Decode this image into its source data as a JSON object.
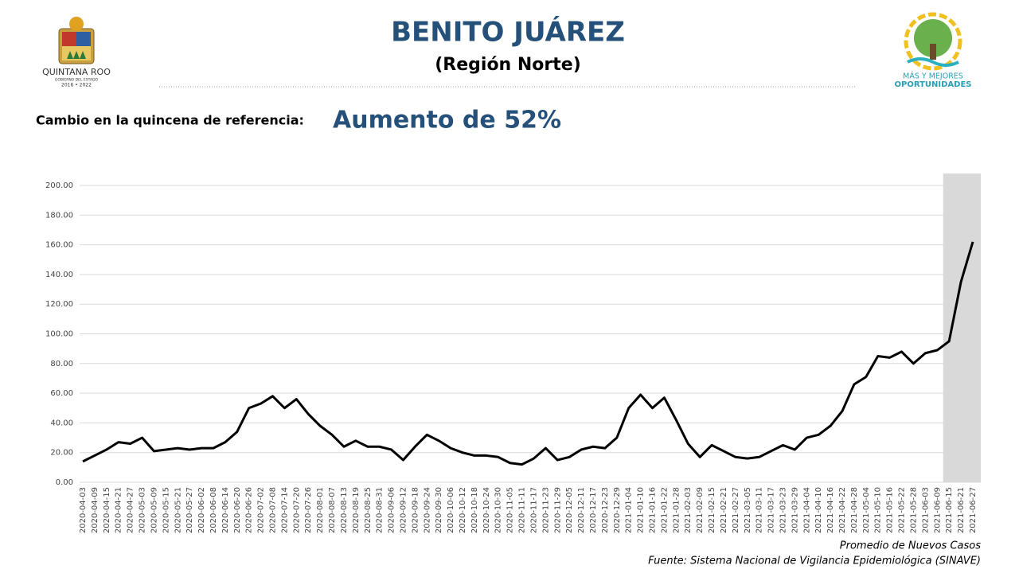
{
  "header": {
    "title": "BENITO JUÁREZ",
    "subtitle": "(Región Norte)"
  },
  "left_logo": {
    "name": "QUINTANA ROO",
    "tagline": "GOBIERNO DEL ESTADO",
    "years": "2016 • 2022"
  },
  "right_logo": {
    "line1": "MÁS Y MEJORES",
    "line2": "OPORTUNIDADES"
  },
  "change": {
    "label": "Cambio en la quincena de referencia:",
    "value": "Aumento de 52%"
  },
  "footer": {
    "series_note": "Promedio de Nuevos Casos",
    "source": "Fuente: Sistema Nacional de Vigilancia Epidemiológica (SINAVE)"
  },
  "chart_data": {
    "type": "line",
    "color": "#000000",
    "grid": true,
    "highlight_from": "2021-06-15",
    "categories": [
      "2020-04-03",
      "2020-04-09",
      "2020-04-15",
      "2020-04-21",
      "2020-04-27",
      "2020-05-03",
      "2020-05-09",
      "2020-05-15",
      "2020-05-21",
      "2020-05-27",
      "2020-06-02",
      "2020-06-08",
      "2020-06-14",
      "2020-06-20",
      "2020-06-26",
      "2020-07-02",
      "2020-07-08",
      "2020-07-14",
      "2020-07-20",
      "2020-07-26",
      "2020-08-01",
      "2020-08-07",
      "2020-08-13",
      "2020-08-19",
      "2020-08-25",
      "2020-08-31",
      "2020-09-06",
      "2020-09-12",
      "2020-09-18",
      "2020-09-24",
      "2020-09-30",
      "2020-10-06",
      "2020-10-12",
      "2020-10-18",
      "2020-10-24",
      "2020-10-30",
      "2020-11-05",
      "2020-11-11",
      "2020-11-17",
      "2020-11-23",
      "2020-11-29",
      "2020-12-05",
      "2020-12-11",
      "2020-12-17",
      "2020-12-23",
      "2020-12-29",
      "2021-01-04",
      "2021-01-10",
      "2021-01-16",
      "2021-01-22",
      "2021-01-28",
      "2021-02-03",
      "2021-02-09",
      "2021-02-15",
      "2021-02-21",
      "2021-02-27",
      "2021-03-05",
      "2021-03-11",
      "2021-03-17",
      "2021-03-23",
      "2021-03-29",
      "2021-04-04",
      "2021-04-10",
      "2021-04-16",
      "2021-04-22",
      "2021-04-28",
      "2021-05-04",
      "2021-05-10",
      "2021-05-16",
      "2021-05-22",
      "2021-05-28",
      "2021-06-03",
      "2021-06-09",
      "2021-06-15",
      "2021-06-21",
      "2021-06-27"
    ],
    "values": [
      14,
      18,
      22,
      27,
      26,
      30,
      21,
      22,
      23,
      22,
      23,
      23,
      27,
      34,
      50,
      53,
      58,
      50,
      56,
      46,
      38,
      32,
      24,
      28,
      24,
      24,
      22,
      15,
      24,
      32,
      28,
      23,
      20,
      18,
      18,
      17,
      13,
      12,
      16,
      23,
      15,
      17,
      22,
      24,
      23,
      30,
      50,
      59,
      50,
      57,
      42,
      26,
      17,
      25,
      21,
      17,
      16,
      17,
      21,
      25,
      22,
      30,
      32,
      38,
      48,
      66,
      71,
      85,
      84,
      88,
      80,
      87,
      89,
      95,
      135,
      162
    ],
    "ylim": [
      0,
      200
    ],
    "yticks": [
      {
        "value": 0,
        "label": "0.00"
      },
      {
        "value": 20,
        "label": "20.00"
      },
      {
        "value": 40,
        "label": "40.00"
      },
      {
        "value": 60,
        "label": "60.00"
      },
      {
        "value": 80,
        "label": "80.00"
      },
      {
        "value": 100,
        "label": "100.00"
      },
      {
        "value": 120,
        "label": "120.00"
      },
      {
        "value": 140,
        "label": "140.00"
      },
      {
        "value": 160,
        "label": "160.00"
      },
      {
        "value": 180,
        "label": "180.00"
      },
      {
        "value": 200,
        "label": "200.00"
      }
    ]
  }
}
